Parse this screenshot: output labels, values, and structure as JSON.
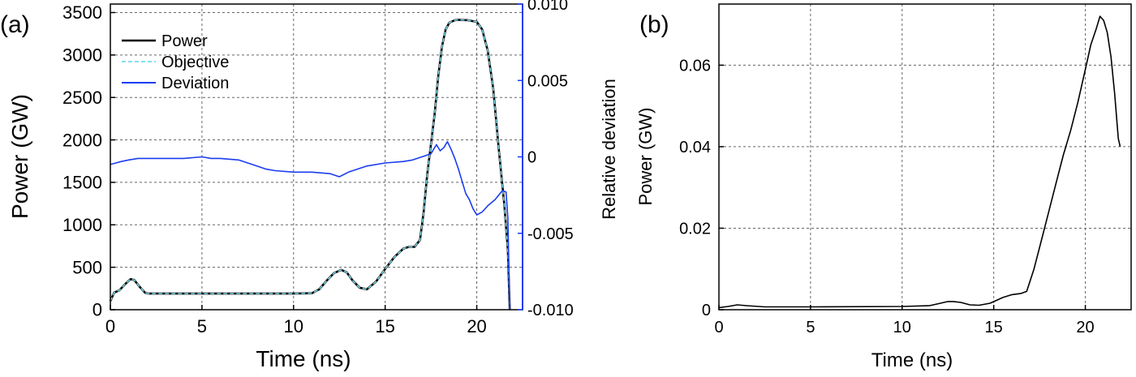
{
  "chart_data": [
    {
      "panel_label": "(a)",
      "type": "line",
      "xlabel": "Time (ns)",
      "ylabel": "Power (GW)",
      "y2label": "Relative deviation",
      "xlim": [
        0,
        22.5
      ],
      "ylim": [
        0,
        3600
      ],
      "y2lim": [
        -0.01,
        0.01
      ],
      "xticks": [
        "0",
        "5",
        "10",
        "15",
        "20"
      ],
      "yticks": [
        "0",
        "500",
        "1000",
        "1500",
        "2000",
        "2500",
        "3000",
        "3500"
      ],
      "y2ticks": [
        "-0.010",
        "-0.005",
        "0",
        "0.005",
        "0.010"
      ],
      "grid": true,
      "legend_position": "top-left",
      "series": [
        {
          "name": "Power",
          "axis": "left",
          "color": "#000000",
          "x": [
            0,
            0.2,
            0.5,
            0.8,
            1.1,
            1.3,
            1.6,
            1.9,
            2.1,
            3,
            5,
            8,
            10,
            11,
            11.4,
            11.8,
            12.2,
            12.6,
            12.9,
            13.2,
            13.6,
            14,
            14.5,
            15,
            15.5,
            16,
            16.3,
            16.6,
            16.9,
            17.1,
            17.3,
            17.5,
            17.7,
            17.9,
            18.1,
            18.3,
            18.5,
            18.8,
            19,
            19.5,
            20,
            20.3,
            20.6,
            20.9,
            21.2,
            21.5,
            21.7,
            21.8
          ],
          "y": [
            100,
            200,
            230,
            300,
            360,
            350,
            270,
            200,
            190,
            190,
            190,
            190,
            190,
            195,
            240,
            340,
            430,
            470,
            440,
            350,
            260,
            240,
            330,
            480,
            620,
            720,
            740,
            740,
            820,
            1150,
            1600,
            1950,
            2300,
            2750,
            3100,
            3300,
            3380,
            3410,
            3415,
            3410,
            3390,
            3300,
            3050,
            2600,
            1900,
            1250,
            700,
            0
          ]
        },
        {
          "name": "Objective",
          "axis": "left",
          "color": "#7fe0f0",
          "dashed": true,
          "x": [
            0,
            0.2,
            0.5,
            0.8,
            1.1,
            1.3,
            1.6,
            1.9,
            2.1,
            3,
            5,
            8,
            10,
            11,
            11.4,
            11.8,
            12.2,
            12.6,
            12.9,
            13.2,
            13.6,
            14,
            14.5,
            15,
            15.5,
            16,
            16.3,
            16.6,
            16.9,
            17.1,
            17.3,
            17.5,
            17.7,
            17.9,
            18.1,
            18.3,
            18.5,
            18.8,
            19,
            19.5,
            20,
            20.3,
            20.6,
            20.9,
            21.2,
            21.5,
            21.7,
            21.8
          ],
          "y": [
            100,
            200,
            230,
            300,
            360,
            350,
            270,
            200,
            190,
            190,
            190,
            190,
            190,
            195,
            240,
            340,
            430,
            470,
            440,
            350,
            260,
            240,
            330,
            480,
            620,
            720,
            740,
            740,
            820,
            1150,
            1600,
            1950,
            2300,
            2750,
            3100,
            3300,
            3380,
            3410,
            3415,
            3410,
            3390,
            3300,
            3050,
            2600,
            1900,
            1250,
            700,
            0
          ]
        },
        {
          "name": "Deviation",
          "axis": "right",
          "color": "#1a3df0",
          "x": [
            0,
            0.3,
            0.6,
            1,
            1.5,
            2,
            3,
            4,
            5,
            5.5,
            6,
            7,
            7.5,
            8,
            8.5,
            9,
            10,
            11,
            12,
            12.5,
            13,
            14,
            15,
            16,
            16.5,
            17,
            17.5,
            17.8,
            18,
            18.2,
            18.4,
            18.6,
            18.8,
            19,
            19.2,
            19.4,
            19.6,
            19.8,
            20,
            20.3,
            20.6,
            21,
            21.4,
            21.6,
            21.7,
            21.8
          ],
          "y": [
            -0.0005,
            -0.0004,
            -0.0003,
            -0.0002,
            -0.0001,
            -0.0001,
            -0.0001,
            -0.0001,
            0.0,
            -0.0001,
            -0.0001,
            -0.0002,
            -0.0004,
            -0.0006,
            -0.0008,
            -0.0009,
            -0.001,
            -0.001,
            -0.0011,
            -0.0013,
            -0.001,
            -0.0006,
            -0.0004,
            -0.0003,
            -0.0002,
            0.0,
            0.0002,
            0.0008,
            0.0004,
            0.0006,
            0.001,
            0.0005,
            -0.0001,
            -0.0008,
            -0.0016,
            -0.0024,
            -0.0028,
            -0.0034,
            -0.0038,
            -0.0036,
            -0.0032,
            -0.0028,
            -0.0022,
            -0.0023,
            -0.004,
            -0.01
          ]
        }
      ]
    },
    {
      "panel_label": "(b)",
      "type": "line",
      "xlabel": "Time (ns)",
      "ylabel": "Power (GW)",
      "xlim": [
        0,
        22.5
      ],
      "ylim": [
        0,
        0.075
      ],
      "xticks": [
        "0",
        "5",
        "10",
        "15",
        "20"
      ],
      "yticks": [
        "0",
        "0.02",
        "0.04",
        "0.06"
      ],
      "grid": true,
      "series": [
        {
          "color": "#000000",
          "x": [
            0,
            0.5,
            1,
            1.5,
            2.5,
            5,
            10,
            11.5,
            12,
            12.5,
            12.8,
            13.2,
            13.7,
            14.2,
            14.8,
            15.5,
            16,
            16.5,
            16.8,
            17.2,
            17.6,
            18,
            18.4,
            18.8,
            19.2,
            19.6,
            20,
            20.3,
            20.6,
            20.8,
            21,
            21.2,
            21.4,
            21.6,
            21.8,
            21.9
          ],
          "y": [
            0.0005,
            0.0008,
            0.0012,
            0.001,
            0.0007,
            0.0007,
            0.0008,
            0.001,
            0.0015,
            0.002,
            0.002,
            0.0018,
            0.0012,
            0.0011,
            0.0016,
            0.003,
            0.0037,
            0.004,
            0.0045,
            0.01,
            0.017,
            0.024,
            0.031,
            0.038,
            0.044,
            0.051,
            0.059,
            0.065,
            0.069,
            0.072,
            0.071,
            0.068,
            0.062,
            0.053,
            0.042,
            0.04
          ]
        }
      ]
    }
  ]
}
